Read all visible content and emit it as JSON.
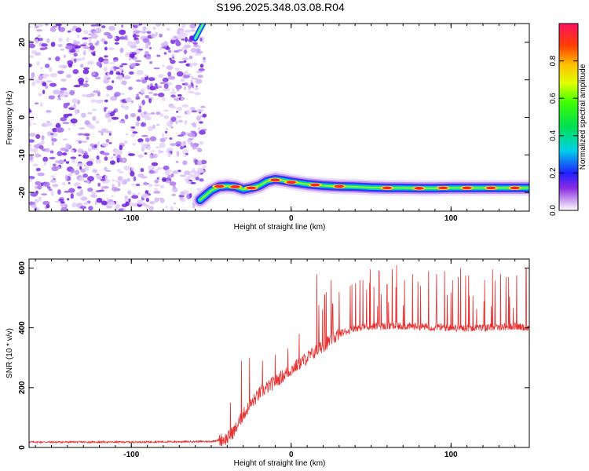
{
  "figure_title": "S196.2025.348.03.08.R04",
  "chart_data": [
    {
      "type": "heatmap",
      "title": "",
      "xlabel": "Height of straight line (km)",
      "ylabel": "Frequency (Hz)",
      "xlim": [
        -164,
        149
      ],
      "ylim": [
        -25,
        25
      ],
      "xticks": [
        -100,
        0,
        100
      ],
      "yticks": [
        -20,
        -10,
        0,
        10,
        20
      ],
      "colorbar": {
        "label": "Normalized spectral amplitude",
        "range": [
          0,
          1
        ],
        "ticks": [
          "0.0",
          "0.2",
          "0.4",
          "0.6",
          "0.8"
        ]
      },
      "noise_region_x": [
        -164,
        -57
      ],
      "signal_trace": {
        "x": [
          -57,
          -50,
          -45,
          -40,
          -35,
          -30,
          -25,
          -20,
          -15,
          -10,
          -5,
          0,
          10,
          20,
          30,
          40,
          50,
          60,
          70,
          80,
          90,
          100,
          110,
          120,
          130,
          140,
          149
        ],
        "y": [
          -22,
          -19.5,
          -18.5,
          -18.3,
          -18.5,
          -19.2,
          -18.8,
          -18.2,
          -17,
          -16.5,
          -16.8,
          -17.2,
          -17.8,
          -18.2,
          -18.4,
          -18.5,
          -18.7,
          -18.8,
          -18.8,
          -18.9,
          -18.9,
          -18.8,
          -18.8,
          -18.8,
          -18.8,
          -18.8,
          -18.8
        ]
      },
      "upper_left_trace": {
        "x": [
          -60,
          -57,
          -55
        ],
        "y": [
          21,
          23.5,
          25
        ]
      }
    },
    {
      "type": "line",
      "title": "",
      "xlabel": "Height of straight line (km)",
      "ylabel": "SNR (10 * v/v)",
      "xlim": [
        -164,
        149
      ],
      "ylim": [
        0,
        630
      ],
      "xticks": [
        -100,
        0,
        100
      ],
      "yticks": [
        0,
        200,
        400,
        600
      ],
      "series": [
        {
          "name": "SNR",
          "color": "#e83030",
          "baseline": {
            "x": [
              -164,
              -100,
              -50,
              -40,
              -35,
              -30,
              -20,
              -10,
              0,
              10,
              20,
              30,
              40,
              50,
              60,
              80,
              100,
              120,
              140,
              149
            ],
            "y": [
              18,
              18,
              20,
              30,
              60,
              110,
              180,
              220,
              260,
              300,
              340,
              380,
              400,
              405,
              405,
              405,
              400,
              400,
              405,
              400
            ]
          },
          "spikes": {
            "x": [
              -38,
              -31,
              -26,
              -18,
              -10,
              -2,
              5,
              16,
              21,
              25,
              26,
              30,
              37,
              43,
              49,
              55,
              60,
              66,
              71,
              76,
              81,
              86,
              91,
              96,
              101,
              106,
              111,
              116,
              121,
              126,
              131,
              136,
              141,
              147
            ],
            "y": [
              150,
              290,
              300,
              290,
              310,
              330,
              380,
              580,
              510,
              560,
              480,
              520,
              540,
              560,
              550,
              590,
              545,
              610,
              560,
              580,
              540,
              590,
              580,
              590,
              560,
              600,
              575,
              615,
              560,
              595,
              580,
              570,
              575,
              600
            ]
          }
        }
      ]
    }
  ]
}
